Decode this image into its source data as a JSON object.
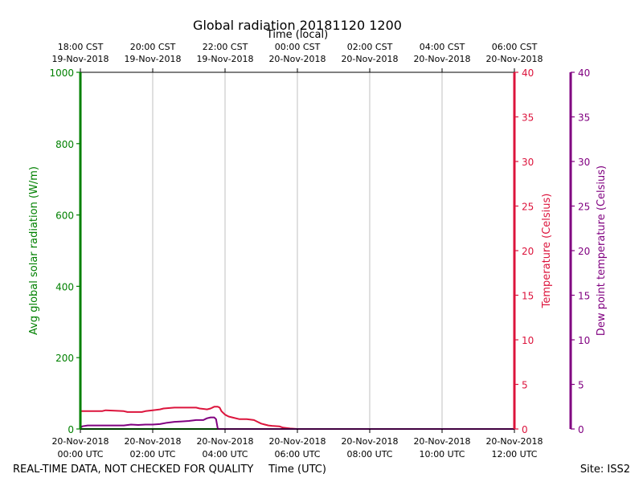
{
  "chart_data": {
    "type": "line",
    "title": "Global radiation 20181120 1200",
    "top_axis_title": "Time (local)",
    "xlabel": "Time (UTC)",
    "x_unit": "hours since 2018-11-20 00:00 UTC",
    "xlim": [
      0,
      12
    ],
    "x_ticks": [
      {
        "x": 0,
        "utc_date": "20-Nov-2018",
        "utc_time": "00:00 UTC",
        "local_time": "18:00 CST",
        "local_date": "19-Nov-2018"
      },
      {
        "x": 2,
        "utc_date": "20-Nov-2018",
        "utc_time": "02:00 UTC",
        "local_time": "20:00 CST",
        "local_date": "19-Nov-2018"
      },
      {
        "x": 4,
        "utc_date": "20-Nov-2018",
        "utc_time": "04:00 UTC",
        "local_time": "22:00 CST",
        "local_date": "19-Nov-2018"
      },
      {
        "x": 6,
        "utc_date": "20-Nov-2018",
        "utc_time": "06:00 UTC",
        "local_time": "00:00 CST",
        "local_date": "20-Nov-2018"
      },
      {
        "x": 8,
        "utc_date": "20-Nov-2018",
        "utc_time": "08:00 UTC",
        "local_time": "02:00 CST",
        "local_date": "20-Nov-2018"
      },
      {
        "x": 10,
        "utc_date": "20-Nov-2018",
        "utc_time": "10:00 UTC",
        "local_time": "04:00 CST",
        "local_date": "20-Nov-2018"
      },
      {
        "x": 12,
        "utc_date": "20-Nov-2018",
        "utc_time": "12:00 UTC",
        "local_time": "06:00 CST",
        "local_date": "20-Nov-2018"
      }
    ],
    "grid": "vertical",
    "axes": {
      "radiation": {
        "label": "Avg global solar radiation (W/m)",
        "ylim": [
          0,
          1000
        ],
        "ticks": [
          0,
          200,
          400,
          600,
          800,
          1000
        ],
        "color": "#008000",
        "side": "left"
      },
      "temperature": {
        "label": "Temperature (Celsius)",
        "ylim": [
          0,
          40
        ],
        "ticks": [
          0,
          5,
          10,
          15,
          20,
          25,
          30,
          35,
          40
        ],
        "color": "#dc143c",
        "side": "right"
      },
      "dewpoint": {
        "label": "Dew point temperature (Celsius)",
        "ylim": [
          0,
          40
        ],
        "ticks": [
          0,
          5,
          10,
          15,
          20,
          25,
          30,
          35,
          40
        ],
        "color": "#800080",
        "side": "far-right"
      }
    },
    "series": [
      {
        "name": "Avg global solar radiation",
        "axis": "radiation",
        "color": "#008000",
        "x": [
          0,
          12
        ],
        "y": [
          0,
          0
        ]
      },
      {
        "name": "Temperature",
        "axis": "temperature",
        "color": "#dc143c",
        "x": [
          0,
          0.6,
          0.7,
          1.2,
          1.3,
          1.7,
          1.8,
          2.0,
          2.2,
          2.3,
          2.6,
          2.8,
          3.2,
          3.3,
          3.5,
          3.6,
          3.7,
          3.8,
          3.85,
          3.9,
          4.0,
          4.1,
          4.2,
          4.4,
          4.6,
          4.8,
          4.9,
          5.0,
          5.1,
          5.2,
          5.3,
          5.5,
          5.6,
          5.8,
          6.0,
          12.0
        ],
        "y": [
          2.0,
          2.0,
          2.1,
          2.0,
          1.9,
          1.9,
          2.0,
          2.1,
          2.2,
          2.3,
          2.4,
          2.4,
          2.4,
          2.3,
          2.2,
          2.3,
          2.5,
          2.5,
          2.4,
          2.0,
          1.6,
          1.4,
          1.3,
          1.1,
          1.1,
          1.0,
          0.8,
          0.6,
          0.5,
          0.4,
          0.35,
          0.3,
          0.15,
          0.05,
          0.0,
          0.0
        ]
      },
      {
        "name": "Dew point temperature",
        "axis": "dewpoint",
        "color": "#800080",
        "x": [
          0,
          0.05,
          0.2,
          0.4,
          0.6,
          0.8,
          1.0,
          1.2,
          1.4,
          1.6,
          1.8,
          2.0,
          2.2,
          2.4,
          2.6,
          2.8,
          3.0,
          3.2,
          3.4,
          3.5,
          3.6,
          3.7,
          3.75,
          3.8,
          12.0
        ],
        "y": [
          0.1,
          0.3,
          0.4,
          0.4,
          0.4,
          0.4,
          0.4,
          0.4,
          0.5,
          0.45,
          0.5,
          0.5,
          0.55,
          0.7,
          0.8,
          0.85,
          0.9,
          1.0,
          1.0,
          1.2,
          1.3,
          1.3,
          1.1,
          0.0,
          0.0
        ]
      }
    ]
  },
  "footer": {
    "left_note": "REAL-TIME DATA, NOT CHECKED FOR QUALITY",
    "site": "Site: ISS2"
  }
}
